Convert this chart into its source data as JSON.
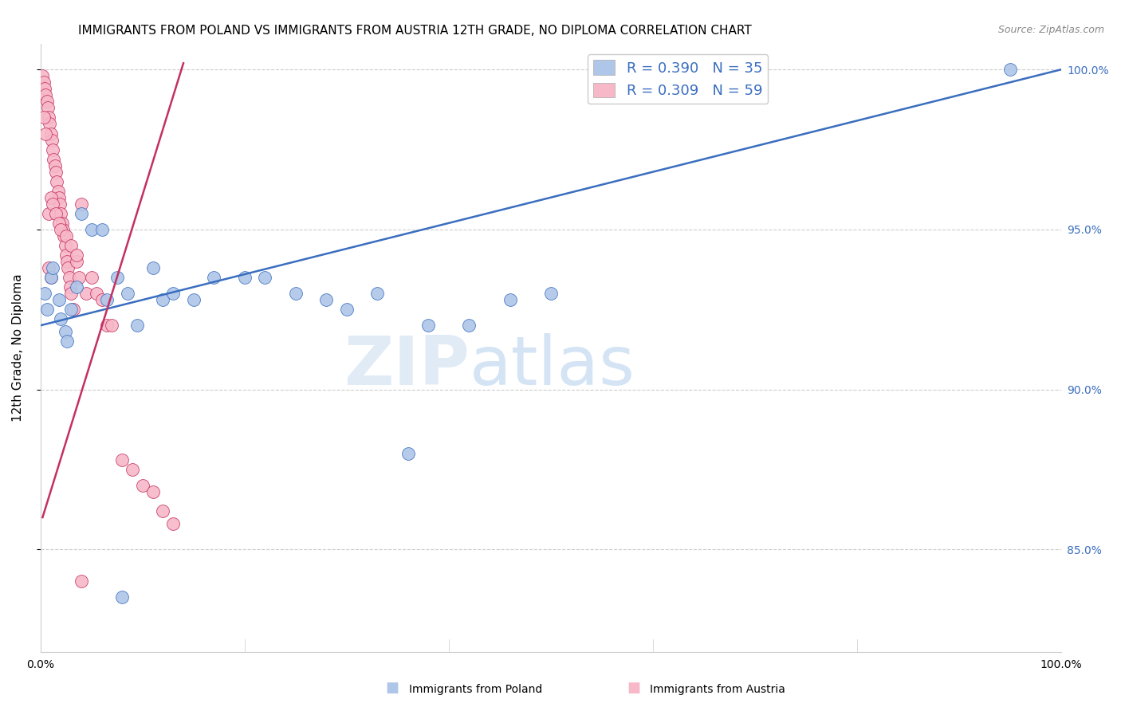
{
  "title": "IMMIGRANTS FROM POLAND VS IMMIGRANTS FROM AUSTRIA 12TH GRADE, NO DIPLOMA CORRELATION CHART",
  "source": "Source: ZipAtlas.com",
  "ylabel": "12th Grade, No Diploma",
  "legend_label_1": "Immigrants from Poland",
  "legend_label_2": "Immigrants from Austria",
  "R1": 0.39,
  "N1": 35,
  "R2": 0.309,
  "N2": 59,
  "color_poland": "#aec6e8",
  "color_austria": "#f7b8c8",
  "line_color_poland": "#3a6ebf",
  "line_color_austria": "#c43060",
  "xlim": [
    0,
    1
  ],
  "ylim": [
    0.818,
    1.008
  ],
  "yticks": [
    0.85,
    0.9,
    0.95,
    1.0
  ],
  "ytick_labels": [
    "85.0%",
    "90.0%",
    "95.0%",
    "100.0%"
  ],
  "xticks": [
    0.0,
    0.2,
    0.4,
    0.6,
    0.8,
    1.0
  ],
  "xtick_labels": [
    "0.0%",
    "",
    "",
    "",
    "",
    "100.0%"
  ],
  "poland_x": [
    0.004,
    0.006,
    0.01,
    0.012,
    0.018,
    0.02,
    0.024,
    0.026,
    0.03,
    0.035,
    0.04,
    0.05,
    0.06,
    0.065,
    0.075,
    0.085,
    0.095,
    0.11,
    0.12,
    0.13,
    0.15,
    0.17,
    0.2,
    0.22,
    0.25,
    0.28,
    0.3,
    0.33,
    0.36,
    0.38,
    0.42,
    0.46,
    0.5,
    0.95,
    0.08
  ],
  "poland_y": [
    0.93,
    0.925,
    0.935,
    0.938,
    0.928,
    0.922,
    0.918,
    0.915,
    0.925,
    0.932,
    0.955,
    0.95,
    0.95,
    0.928,
    0.935,
    0.93,
    0.92,
    0.938,
    0.928,
    0.93,
    0.928,
    0.935,
    0.935,
    0.935,
    0.93,
    0.928,
    0.925,
    0.93,
    0.88,
    0.92,
    0.92,
    0.928,
    0.93,
    1.0,
    0.835
  ],
  "austria_x": [
    0.002,
    0.003,
    0.004,
    0.005,
    0.006,
    0.007,
    0.008,
    0.009,
    0.01,
    0.011,
    0.012,
    0.013,
    0.014,
    0.015,
    0.016,
    0.017,
    0.018,
    0.019,
    0.02,
    0.021,
    0.022,
    0.023,
    0.024,
    0.025,
    0.026,
    0.027,
    0.028,
    0.029,
    0.03,
    0.032,
    0.035,
    0.038,
    0.04,
    0.045,
    0.05,
    0.055,
    0.06,
    0.065,
    0.07,
    0.08,
    0.09,
    0.1,
    0.11,
    0.12,
    0.13,
    0.008,
    0.01,
    0.012,
    0.015,
    0.018,
    0.02,
    0.025,
    0.03,
    0.035,
    0.04,
    0.008,
    0.01,
    0.003,
    0.005
  ],
  "austria_y": [
    0.998,
    0.996,
    0.994,
    0.992,
    0.99,
    0.988,
    0.985,
    0.983,
    0.98,
    0.978,
    0.975,
    0.972,
    0.97,
    0.968,
    0.965,
    0.962,
    0.96,
    0.958,
    0.955,
    0.952,
    0.95,
    0.948,
    0.945,
    0.942,
    0.94,
    0.938,
    0.935,
    0.932,
    0.93,
    0.925,
    0.94,
    0.935,
    0.958,
    0.93,
    0.935,
    0.93,
    0.928,
    0.92,
    0.92,
    0.878,
    0.875,
    0.87,
    0.868,
    0.862,
    0.858,
    0.955,
    0.96,
    0.958,
    0.955,
    0.952,
    0.95,
    0.948,
    0.945,
    0.942,
    0.84,
    0.938,
    0.935,
    0.985,
    0.98
  ],
  "watermark_zip": "ZIP",
  "watermark_atlas": "atlas",
  "background_color": "#ffffff",
  "grid_color": "#cccccc",
  "title_fontsize": 11,
  "axis_label_fontsize": 11,
  "tick_fontsize": 10,
  "legend_fontsize": 13,
  "right_ytick_color": "#3a6ebf",
  "blue_line_x0": 0.0,
  "blue_line_x1": 1.0,
  "blue_line_y0": 0.92,
  "blue_line_y1": 1.0,
  "pink_line_x0": 0.002,
  "pink_line_x1": 0.14,
  "pink_line_y0": 0.86,
  "pink_line_y1": 1.002
}
